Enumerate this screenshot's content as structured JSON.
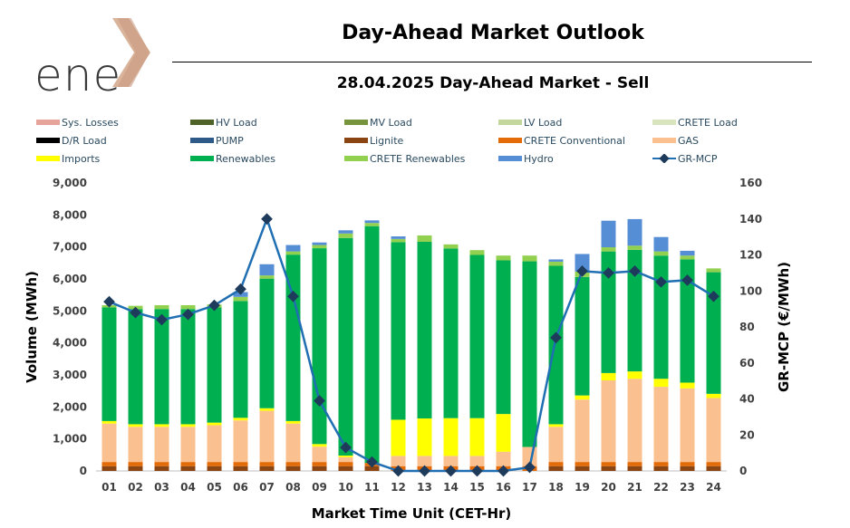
{
  "header": {
    "logo_text": "ene",
    "title": "Day-Ahead Market Outlook",
    "subtitle": "28.04.2025  Day-Ahead Market - Sell"
  },
  "chart_data": {
    "type": "bar",
    "stacked": true,
    "title": "28.04.2025  Day-Ahead Market - Sell",
    "xlabel": "Market Time Unit (CET-Hr)",
    "ylabel": "Volume (MWh)",
    "y2label": "GR-MCP (€/MWh)",
    "ylim": [
      0,
      9000
    ],
    "y2lim": [
      0,
      160
    ],
    "yticks": [
      "0",
      "1,000",
      "2,000",
      "3,000",
      "4,000",
      "5,000",
      "6,000",
      "7,000",
      "8,000",
      "9,000"
    ],
    "y2ticks": [
      "0",
      "20",
      "40",
      "60",
      "80",
      "100",
      "120",
      "140",
      "160"
    ],
    "categories": [
      "01",
      "02",
      "03",
      "04",
      "05",
      "06",
      "07",
      "08",
      "09",
      "10",
      "11",
      "12",
      "13",
      "14",
      "15",
      "16",
      "17",
      "18",
      "19",
      "20",
      "21",
      "22",
      "23",
      "24"
    ],
    "series": [
      {
        "name": "Sys. Losses",
        "color": "#e6a39a",
        "values": [
          0,
          0,
          0,
          0,
          0,
          0,
          0,
          0,
          0,
          0,
          0,
          0,
          0,
          0,
          0,
          0,
          0,
          0,
          0,
          0,
          0,
          0,
          0,
          0
        ]
      },
      {
        "name": "HV Load",
        "color": "#4f6228",
        "values": [
          0,
          0,
          0,
          0,
          0,
          0,
          0,
          0,
          0,
          0,
          0,
          0,
          0,
          0,
          0,
          0,
          0,
          0,
          0,
          0,
          0,
          0,
          0,
          0
        ]
      },
      {
        "name": "MV Load",
        "color": "#77933c",
        "values": [
          0,
          0,
          0,
          0,
          0,
          0,
          0,
          0,
          0,
          0,
          0,
          0,
          0,
          0,
          0,
          0,
          0,
          0,
          0,
          0,
          0,
          0,
          0,
          0
        ]
      },
      {
        "name": "LV Load",
        "color": "#c3d69b",
        "values": [
          0,
          0,
          0,
          0,
          0,
          0,
          0,
          0,
          0,
          0,
          0,
          0,
          0,
          0,
          0,
          0,
          0,
          0,
          0,
          0,
          0,
          0,
          0,
          0
        ]
      },
      {
        "name": "CRETE Load",
        "color": "#d7e4bd",
        "values": [
          0,
          0,
          0,
          0,
          0,
          0,
          0,
          0,
          0,
          0,
          0,
          0,
          0,
          0,
          0,
          0,
          0,
          0,
          0,
          0,
          0,
          0,
          0,
          0
        ]
      },
      {
        "name": "D/R Load",
        "color": "#000000",
        "values": [
          0,
          0,
          0,
          0,
          0,
          0,
          0,
          0,
          0,
          0,
          0,
          0,
          0,
          0,
          0,
          0,
          0,
          0,
          0,
          0,
          0,
          0,
          0,
          0
        ]
      },
      {
        "name": "PUMP",
        "color": "#2e5a8a",
        "values": [
          0,
          0,
          0,
          0,
          0,
          0,
          0,
          0,
          0,
          0,
          0,
          0,
          0,
          0,
          0,
          0,
          0,
          0,
          0,
          0,
          0,
          0,
          0,
          0
        ]
      },
      {
        "name": "Lignite",
        "color": "#8b4513",
        "values": [
          150,
          150,
          150,
          150,
          150,
          150,
          150,
          150,
          150,
          150,
          150,
          0,
          0,
          0,
          0,
          0,
          0,
          150,
          150,
          150,
          150,
          150,
          150,
          150
        ]
      },
      {
        "name": "CRETE Conventional",
        "color": "#e36c09",
        "values": [
          130,
          130,
          130,
          130,
          130,
          130,
          130,
          130,
          130,
          130,
          100,
          150,
          150,
          150,
          150,
          150,
          150,
          130,
          130,
          130,
          130,
          130,
          130,
          130
        ]
      },
      {
        "name": "GAS",
        "color": "#fac090",
        "values": [
          1200,
          1100,
          1100,
          1100,
          1150,
          1300,
          1600,
          1200,
          480,
          150,
          0,
          320,
          320,
          320,
          320,
          450,
          600,
          1100,
          1950,
          2550,
          2600,
          2350,
          2300,
          2000
        ]
      },
      {
        "name": "Imports",
        "color": "#ffff00",
        "values": [
          80,
          80,
          80,
          80,
          80,
          80,
          80,
          80,
          80,
          50,
          0,
          1130,
          1170,
          1180,
          1180,
          1180,
          0,
          80,
          130,
          230,
          230,
          250,
          180,
          130
        ]
      },
      {
        "name": "Renewables",
        "color": "#00b050",
        "values": [
          3550,
          3600,
          3600,
          3600,
          3600,
          3650,
          4050,
          5200,
          6120,
          6800,
          7400,
          5550,
          5520,
          5300,
          5100,
          4800,
          5800,
          4950,
          3700,
          3800,
          3800,
          3850,
          3850,
          3800
        ]
      },
      {
        "name": "CRETE Renewables",
        "color": "#92d050",
        "values": [
          70,
          100,
          120,
          120,
          90,
          130,
          100,
          100,
          100,
          140,
          100,
          100,
          200,
          130,
          150,
          150,
          180,
          130,
          170,
          130,
          130,
          130,
          120,
          120
        ]
      },
      {
        "name": "Hydro",
        "color": "#558ed5",
        "values": [
          0,
          0,
          0,
          0,
          0,
          150,
          350,
          200,
          80,
          100,
          80,
          80,
          0,
          0,
          0,
          0,
          0,
          70,
          550,
          830,
          830,
          450,
          150,
          0
        ]
      }
    ],
    "line": {
      "name": "GR-MCP",
      "color": "#1f6fb2",
      "axis": "right",
      "values": [
        94,
        88,
        84,
        87,
        92,
        101,
        140,
        97,
        39,
        13,
        5,
        0,
        0,
        0,
        0,
        0,
        2,
        74,
        111,
        110,
        111,
        105,
        106,
        97
      ]
    }
  }
}
